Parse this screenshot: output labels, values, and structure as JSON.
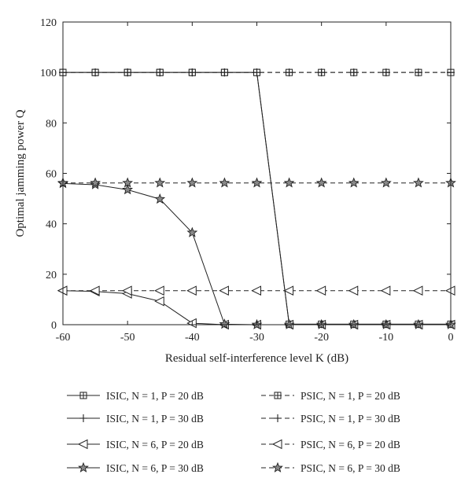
{
  "chart_data": {
    "type": "line",
    "title": "",
    "xlabel": "Residual self-interference level K (dB)",
    "ylabel": "Optimal jamming power Q",
    "xlim": [
      -60,
      0
    ],
    "ylim": [
      0,
      120
    ],
    "xticks": [
      -60,
      -50,
      -40,
      -30,
      -20,
      -10,
      0
    ],
    "yticks": [
      0,
      20,
      40,
      60,
      80,
      100,
      120
    ],
    "grid": false,
    "legend_position": "bottom",
    "x": [
      -60,
      -55,
      -50,
      -45,
      -40,
      -35,
      -30,
      -25,
      -20,
      -15,
      -10,
      -5,
      0
    ],
    "series": [
      {
        "id": "isic-n1-p20",
        "name": "ISIC, N = 1, P = 20 dB",
        "line": "solid",
        "marker": "square",
        "values": [
          100,
          100,
          100,
          100,
          100,
          100,
          100,
          0.2,
          0.2,
          0.2,
          0.2,
          0.2,
          0.2
        ]
      },
      {
        "id": "isic-n1-p30",
        "name": "ISIC, N = 1, P = 30 dB",
        "line": "solid",
        "marker": "plus",
        "values": [
          100,
          100,
          100,
          100,
          100,
          100,
          100,
          0.2,
          0.2,
          0.2,
          0.2,
          0.2,
          0.2
        ]
      },
      {
        "id": "isic-n6-p20",
        "name": "ISIC, N = 6, P = 20 dB",
        "line": "solid",
        "marker": "triangle-left",
        "values": [
          13.5,
          13.2,
          12.3,
          9.3,
          0.6,
          0,
          0,
          0,
          0,
          0,
          0,
          0,
          0
        ]
      },
      {
        "id": "isic-n6-p30",
        "name": "ISIC, N = 6, P = 30 dB",
        "line": "solid",
        "marker": "star",
        "values": [
          56,
          55.5,
          53.5,
          49.8,
          36.5,
          0.2,
          0,
          0,
          0,
          0,
          0,
          0,
          0
        ]
      },
      {
        "id": "psic-n1-p20",
        "name": "PSIC, N = 1, P = 20 dB",
        "line": "dashed",
        "marker": "square",
        "values": [
          100,
          100,
          100,
          100,
          100,
          100,
          100,
          100,
          100,
          100,
          100,
          100,
          100
        ]
      },
      {
        "id": "psic-n1-p30",
        "name": "PSIC, N = 1, P = 30 dB",
        "line": "dashed",
        "marker": "plus",
        "values": [
          100,
          100,
          100,
          100,
          100,
          100,
          100,
          100,
          100,
          100,
          100,
          100,
          100
        ]
      },
      {
        "id": "psic-n6-p20",
        "name": "PSIC, N = 6, P = 20 dB",
        "line": "dashed",
        "marker": "triangle-left",
        "values": [
          13.5,
          13.5,
          13.5,
          13.5,
          13.5,
          13.5,
          13.5,
          13.5,
          13.5,
          13.5,
          13.5,
          13.5,
          13.5
        ]
      },
      {
        "id": "psic-n6-p30",
        "name": "PSIC, N = 6, P = 30 dB",
        "line": "dashed",
        "marker": "star",
        "values": [
          56.2,
          56.2,
          56.2,
          56.2,
          56.2,
          56.2,
          56.2,
          56.2,
          56.2,
          56.2,
          56.2,
          56.2,
          56.2
        ]
      }
    ]
  },
  "colors": {
    "line": "#222222",
    "marker_fill": "#ffffff",
    "star_fill": "#888888"
  }
}
